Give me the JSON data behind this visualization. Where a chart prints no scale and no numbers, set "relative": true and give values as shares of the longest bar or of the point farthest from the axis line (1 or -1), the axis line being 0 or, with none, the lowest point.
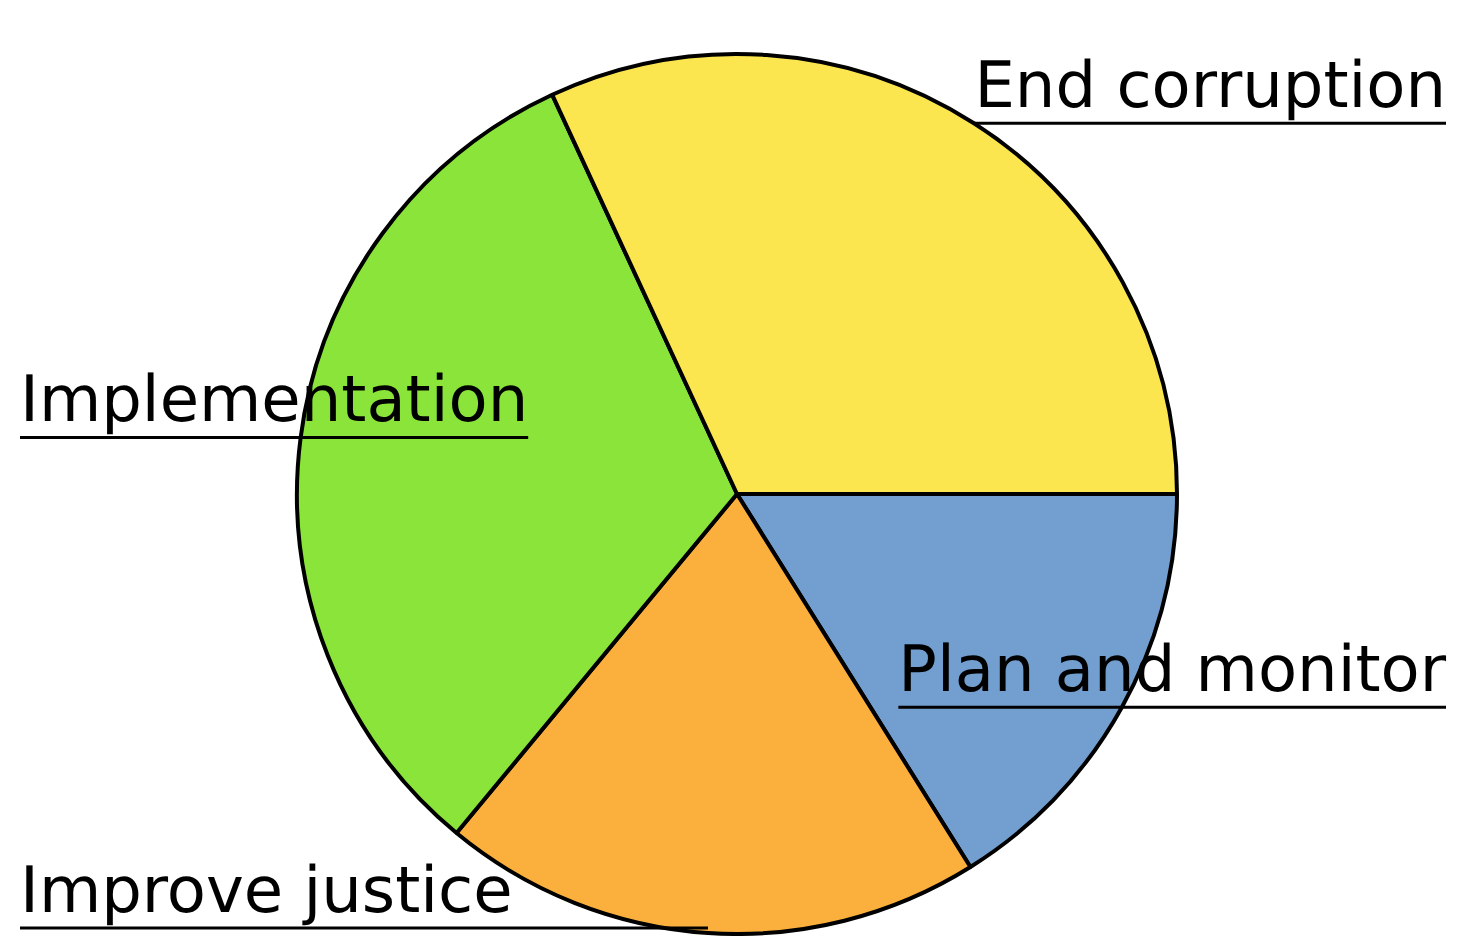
{
  "chart_data": {
    "type": "pie",
    "relative": true,
    "categories": [
      "Plan and monitor",
      "Improve justice",
      "Implementation",
      "End corruption"
    ],
    "values": [
      16.1,
      19.9,
      32.1,
      31.9
    ],
    "colors": [
      "#729fcf",
      "#fbb03e",
      "#8ae43a",
      "#fce64f"
    ],
    "legend": false
  }
}
